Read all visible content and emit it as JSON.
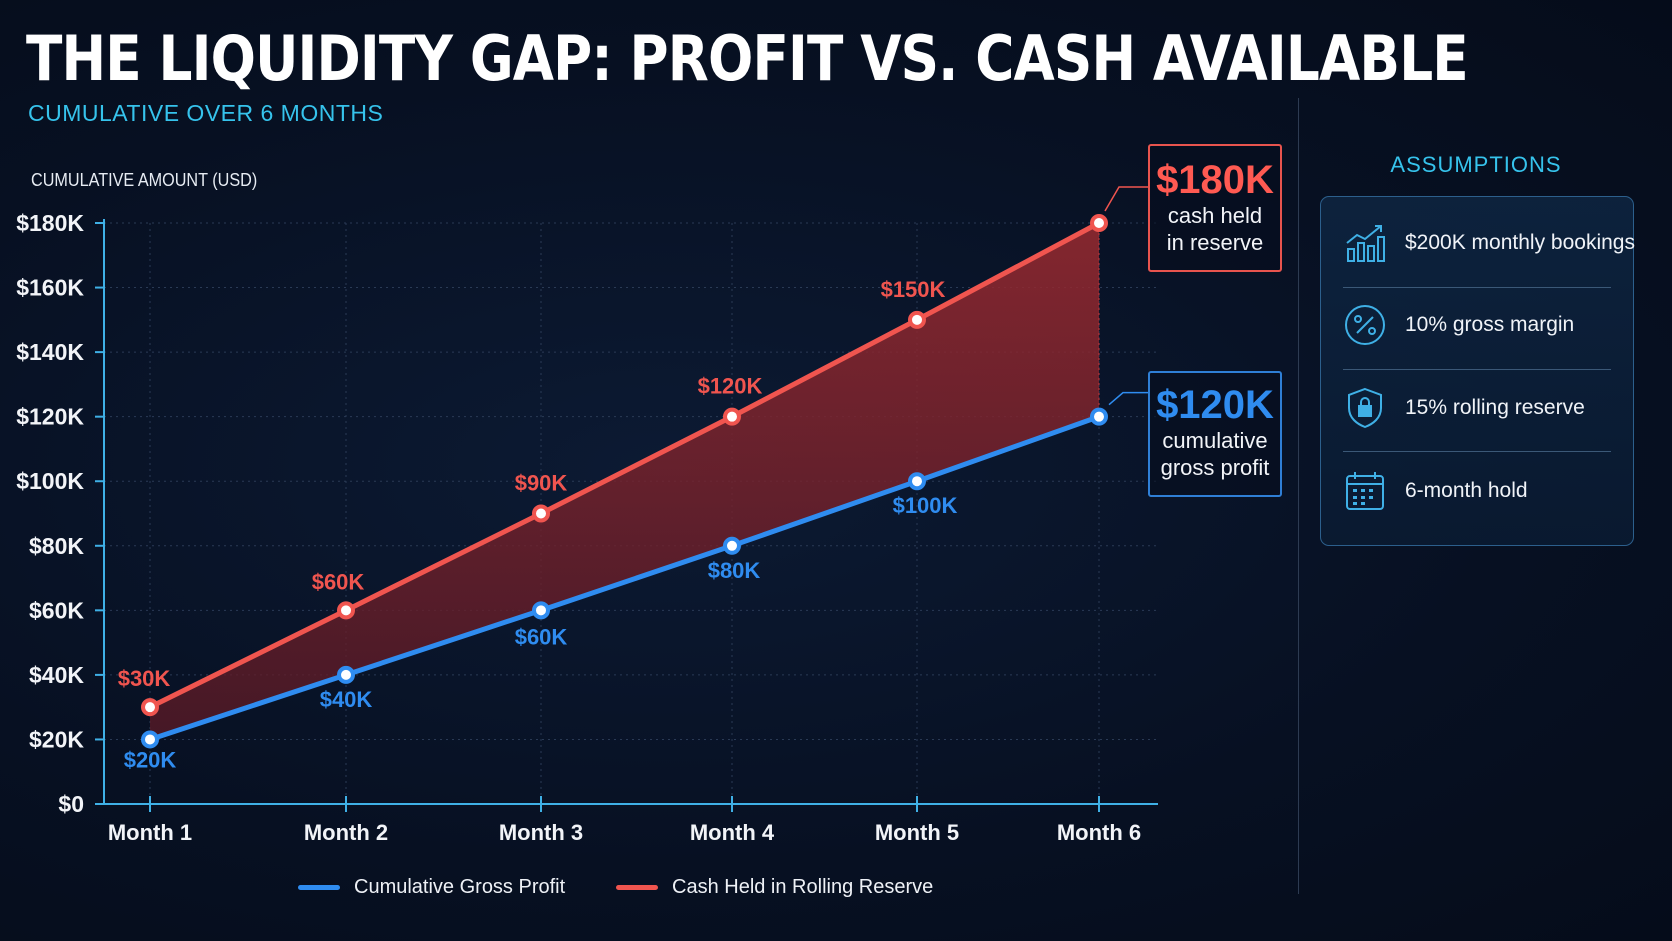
{
  "header": {
    "title": "THE LIQUIDITY GAP: PROFIT VS. CASH AVAILABLE",
    "subtitle": "CUMULATIVE OVER 6 MONTHS",
    "y_axis_label": "CUMULATIVE AMOUNT (USD)"
  },
  "callouts": {
    "reserve_value": "$180K",
    "reserve_line1": "cash held",
    "reserve_line2": "in reserve",
    "profit_value": "$120K",
    "profit_line1": "cumulative",
    "profit_line2": "gross profit"
  },
  "assumptions": {
    "title": "ASSUMPTIONS",
    "items": [
      {
        "icon": "bar-chart-growth-icon",
        "text": "$200K monthly bookings"
      },
      {
        "icon": "percent-icon",
        "text": "10% gross margin"
      },
      {
        "icon": "shield-lock-icon",
        "text": "15% rolling reserve"
      },
      {
        "icon": "calendar-icon",
        "text": "6-month hold"
      }
    ]
  },
  "colors": {
    "profit": "#2f8cf0",
    "reserve": "#f0554f",
    "accent": "#36c3ec"
  },
  "chart_data": {
    "type": "line",
    "categories": [
      "Month 1",
      "Month 2",
      "Month 3",
      "Month 4",
      "Month 5",
      "Month 6"
    ],
    "series": [
      {
        "name": "Cumulative Gross Profit",
        "values": [
          20000,
          40000,
          60000,
          80000,
          100000,
          120000
        ],
        "labels": [
          "$20K",
          "$40K",
          "$60K",
          "$80K",
          "$100K",
          null
        ]
      },
      {
        "name": "Cash Held in Rolling Reserve",
        "values": [
          30000,
          60000,
          90000,
          120000,
          150000,
          180000
        ],
        "labels": [
          "$30K",
          "$60K",
          "$90K",
          "$120K",
          "$150K",
          null
        ]
      }
    ],
    "ylabel": "CUMULATIVE AMOUNT (USD)",
    "ylim": [
      0,
      180000
    ],
    "yticks": [
      "$0",
      "$20K",
      "$40K",
      "$60K",
      "$80K",
      "$100K",
      "$120K",
      "$140K",
      "$160K",
      "$180K"
    ],
    "grid": true,
    "legend": "bottom",
    "shaded_gap": true
  }
}
